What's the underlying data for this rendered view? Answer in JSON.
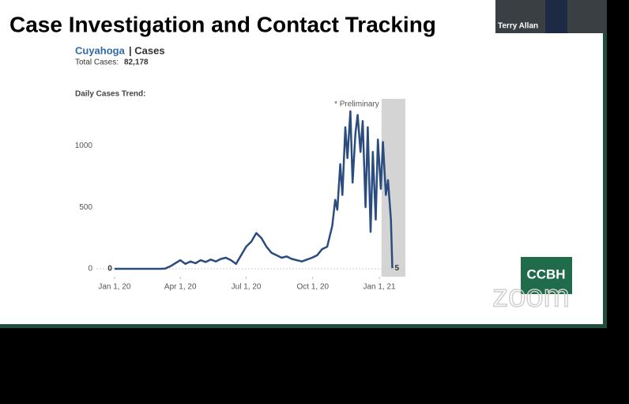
{
  "slide": {
    "title": "Case Investigation and Contact Tracking"
  },
  "participant": {
    "name": "Terry Allan"
  },
  "logo": {
    "text": "CCBH"
  },
  "watermark": {
    "text": "zoom"
  },
  "chart_data": {
    "type": "line",
    "title": "Cuyahoga",
    "title_suffix": "| Cases",
    "total_label": "Total Cases:",
    "total": {
      "value": 82178,
      "label": "82,178"
    },
    "subtitle": "Daily Cases Trend:",
    "annotation": "* Preliminary",
    "preliminary_range": [
      "2021-01-04",
      "2021-02-06"
    ],
    "label_ends": true,
    "grid": false,
    "color": "#2b4c7e",
    "x": [
      "2020-01-01",
      "2020-01-08",
      "2020-01-15",
      "2020-01-22",
      "2020-01-29",
      "2020-02-05",
      "2020-02-12",
      "2020-02-19",
      "2020-02-26",
      "2020-03-04",
      "2020-03-11",
      "2020-03-18",
      "2020-03-25",
      "2020-04-01",
      "2020-04-08",
      "2020-04-15",
      "2020-04-22",
      "2020-04-29",
      "2020-05-06",
      "2020-05-13",
      "2020-05-20",
      "2020-05-27",
      "2020-06-03",
      "2020-06-10",
      "2020-06-17",
      "2020-06-24",
      "2020-07-01",
      "2020-07-08",
      "2020-07-15",
      "2020-07-22",
      "2020-07-29",
      "2020-08-05",
      "2020-08-12",
      "2020-08-19",
      "2020-08-26",
      "2020-09-02",
      "2020-09-09",
      "2020-09-16",
      "2020-09-23",
      "2020-09-30",
      "2020-10-07",
      "2020-10-14",
      "2020-10-21",
      "2020-10-28",
      "2020-11-01",
      "2020-11-04",
      "2020-11-08",
      "2020-11-11",
      "2020-11-15",
      "2020-11-18",
      "2020-11-22",
      "2020-11-25",
      "2020-11-29",
      "2020-12-02",
      "2020-12-06",
      "2020-12-09",
      "2020-12-13",
      "2020-12-16",
      "2020-12-20",
      "2020-12-23",
      "2020-12-27",
      "2020-12-30",
      "2021-01-03",
      "2021-01-06",
      "2021-01-10",
      "2021-01-13",
      "2021-01-17",
      "2021-01-19"
    ],
    "values": [
      0,
      0,
      0,
      0,
      0,
      0,
      0,
      0,
      0,
      0,
      2,
      20,
      45,
      70,
      40,
      60,
      45,
      70,
      55,
      75,
      60,
      80,
      90,
      70,
      40,
      110,
      180,
      220,
      290,
      250,
      180,
      130,
      110,
      90,
      100,
      80,
      70,
      60,
      75,
      90,
      110,
      160,
      180,
      350,
      560,
      480,
      850,
      600,
      1150,
      900,
      1280,
      700,
      1100,
      1250,
      950,
      1200,
      500,
      1150,
      300,
      950,
      400,
      1050,
      650,
      1030,
      600,
      720,
      400,
      5
    ],
    "xlim": [
      "2019-12-07",
      "2021-02-06"
    ],
    "xticks": [
      {
        "value": "2020-01-01",
        "label": "Jan 1, 20"
      },
      {
        "value": "2020-04-01",
        "label": "Apr 1, 20"
      },
      {
        "value": "2020-07-01",
        "label": "Jul 1, 20"
      },
      {
        "value": "2020-10-01",
        "label": "Oct 1, 20"
      },
      {
        "value": "2021-01-01",
        "label": "Jan 1, 21"
      }
    ],
    "ylim": [
      0,
      1400
    ],
    "yticks": [
      0,
      500,
      1000
    ]
  }
}
